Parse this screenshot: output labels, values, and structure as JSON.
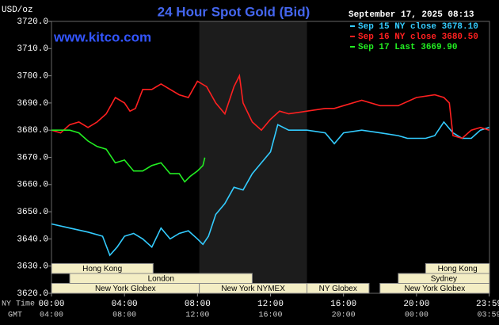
{
  "chart_data": {
    "type": "line",
    "title": "24 Hour Spot Gold (Bid)",
    "site": "www.kitco.com",
    "y_unit": "USD/oz",
    "timestamp": "September 17, 2025 08:13",
    "x_label": "NY Time",
    "x2_label": "GMT",
    "xlim": [
      0,
      24
    ],
    "ylim": [
      3620,
      3720
    ],
    "yticks": [
      {
        "value": 3620,
        "label": "3620.0"
      },
      {
        "value": 3630,
        "label": "3630.0"
      },
      {
        "value": 3640,
        "label": "3640.0"
      },
      {
        "value": 3650,
        "label": "3650.0"
      },
      {
        "value": 3660,
        "label": "3660.0"
      },
      {
        "value": 3670,
        "label": "3670.0"
      },
      {
        "value": 3680,
        "label": "3680.0"
      },
      {
        "value": 3690,
        "label": "3690.0"
      },
      {
        "value": 3700,
        "label": "3700.0"
      },
      {
        "value": 3710,
        "label": "3710.0"
      },
      {
        "value": 3720,
        "label": "3720.0"
      }
    ],
    "xticks": [
      {
        "value": 0,
        "label": "00:00"
      },
      {
        "value": 4,
        "label": "04:00"
      },
      {
        "value": 8,
        "label": "08:00"
      },
      {
        "value": 12,
        "label": "12:00"
      },
      {
        "value": 16,
        "label": "16:00"
      },
      {
        "value": 20,
        "label": "20:00"
      },
      {
        "value": 23.98,
        "label": "23:59"
      }
    ],
    "x2ticks": [
      {
        "value": 0,
        "label": "04:00"
      },
      {
        "value": 4,
        "label": "08:00"
      },
      {
        "value": 8,
        "label": "12:00"
      },
      {
        "value": 12,
        "label": "16:00"
      },
      {
        "value": 16,
        "label": "20:00"
      },
      {
        "value": 20,
        "label": "00:00"
      },
      {
        "value": 23.98,
        "label": "03:59"
      }
    ],
    "grid": false,
    "series": [
      {
        "name": "Sep 15 NY close 3678.10",
        "color": "#33ccff",
        "x": [
          0,
          1,
          2,
          2.8,
          3.2,
          3.6,
          4,
          4.5,
          5,
          5.5,
          6,
          6.5,
          7,
          7.5,
          8,
          8.3,
          8.6,
          9,
          9.5,
          10,
          10.5,
          11,
          11.5,
          12,
          12.4,
          13,
          14,
          15,
          15.5,
          16,
          17,
          18,
          19,
          19.5,
          20,
          20.5,
          21,
          21.5,
          22,
          22.5,
          23,
          23.5,
          23.98
        ],
        "values": [
          3645.5,
          3644,
          3642.5,
          3641,
          3634,
          3637,
          3641,
          3642,
          3640,
          3637,
          3644,
          3640,
          3642,
          3643,
          3640,
          3638,
          3641,
          3649,
          3653,
          3659,
          3658,
          3664,
          3668,
          3672,
          3682,
          3680,
          3680,
          3679,
          3675,
          3679,
          3680,
          3679,
          3678,
          3677,
          3677,
          3677,
          3678,
          3683,
          3679,
          3677,
          3677,
          3680,
          3681
        ]
      },
      {
        "name": "Sep 16 NY close 3680.50",
        "color": "#ff2020",
        "x": [
          0,
          0.5,
          1,
          1.5,
          2,
          2.5,
          3,
          3.5,
          4,
          4.3,
          4.6,
          5,
          5.5,
          6,
          6.5,
          7,
          7.5,
          8,
          8.5,
          9,
          9.5,
          10,
          10.3,
          10.5,
          11,
          11.5,
          12,
          12.5,
          13,
          14,
          15,
          15.5,
          16,
          17,
          18,
          19,
          20,
          21,
          21.5,
          21.8,
          22,
          22.5,
          23,
          23.5,
          23.98
        ],
        "values": [
          3680,
          3679,
          3682,
          3683,
          3681,
          3683,
          3686,
          3692,
          3690,
          3687,
          3688,
          3695,
          3695,
          3697,
          3695,
          3693,
          3692,
          3698,
          3696,
          3690,
          3686,
          3696,
          3700,
          3690,
          3683,
          3680,
          3684,
          3687,
          3686,
          3687,
          3688,
          3688,
          3689,
          3691,
          3689,
          3689,
          3692,
          3693,
          3692,
          3690,
          3678,
          3677,
          3680,
          3681,
          3680
        ]
      },
      {
        "name": "Sep 17 Last 3669.90",
        "color": "#22ee22",
        "x": [
          0,
          0.5,
          1,
          1.5,
          2,
          2.5,
          3,
          3.5,
          4,
          4.5,
          5,
          5.5,
          6,
          6.5,
          7,
          7.3,
          7.6,
          8,
          8.3,
          8.4
        ],
        "values": [
          3680,
          3680,
          3680,
          3679,
          3676,
          3674,
          3673,
          3668,
          3669,
          3665,
          3665,
          3667,
          3668,
          3664,
          3664,
          3661,
          3663,
          3665,
          3667,
          3669.9
        ]
      }
    ],
    "session_rows": [
      [
        {
          "name": "Hong Kong",
          "start": 0,
          "end": 5.57
        },
        {
          "name": "Hong Kong",
          "start": 20.5,
          "end": 24
        }
      ],
      [
        {
          "name": "London",
          "start": 1,
          "end": 11
        },
        {
          "name": "Sydney",
          "start": 19,
          "end": 24
        }
      ],
      [
        {
          "name": "New York Globex",
          "start": 0,
          "end": 8.1
        },
        {
          "name": "New York NYMEX",
          "start": 8.1,
          "end": 14
        },
        {
          "name": "NY Globex",
          "start": 14,
          "end": 17.4
        },
        {
          "name": "New York Globex",
          "start": 18,
          "end": 24
        }
      ]
    ]
  }
}
